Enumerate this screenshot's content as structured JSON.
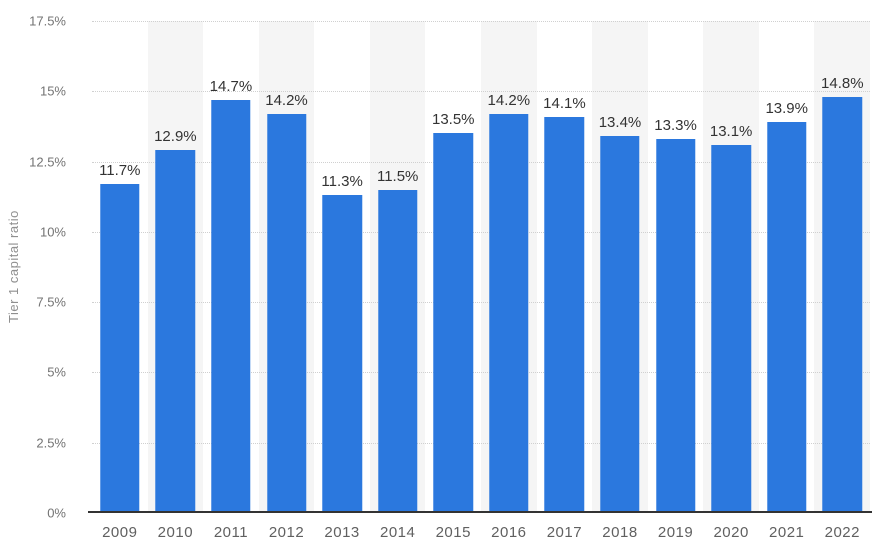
{
  "chart_data": {
    "type": "bar",
    "ylabel": "Tier 1 capital ratio",
    "categories": [
      "2009",
      "2010",
      "2011",
      "2012",
      "2013",
      "2014",
      "2015",
      "2016",
      "2017",
      "2018",
      "2019",
      "2020",
      "2021",
      "2022"
    ],
    "values": [
      11.7,
      12.9,
      14.7,
      14.2,
      11.3,
      11.5,
      13.5,
      14.2,
      14.1,
      13.4,
      13.3,
      13.1,
      13.9,
      14.8
    ],
    "value_labels": [
      "11.7%",
      "12.9%",
      "14.7%",
      "14.2%",
      "11.3%",
      "11.5%",
      "13.5%",
      "14.2%",
      "14.1%",
      "13.4%",
      "13.3%",
      "13.1%",
      "13.9%",
      "14.8%"
    ],
    "ylim": [
      0,
      17.5
    ],
    "yticks": [
      {
        "value": 0,
        "label": "0%"
      },
      {
        "value": 2.5,
        "label": "2.5%"
      },
      {
        "value": 5,
        "label": "5%"
      },
      {
        "value": 7.5,
        "label": "7.5%"
      },
      {
        "value": 10,
        "label": "10%"
      },
      {
        "value": 12.5,
        "label": "12.5%"
      },
      {
        "value": 15,
        "label": "15%"
      },
      {
        "value": 17.5,
        "label": "17.5%"
      }
    ],
    "grid": "horizontal-dotted",
    "legend": "none",
    "alternating_column_bands": "even columns shaded (2010, 2012, 2014, 2016, 2018, 2020, 2022)",
    "colors": {
      "bar": "#2b78de",
      "band": "#f5f5f5",
      "gridline": "#d0d0d0",
      "axis_line": "#333333",
      "tick_label": "#737373",
      "value_label": "#333333",
      "x_label": "#606060",
      "y_axis_title": "#8f8f8f"
    }
  }
}
